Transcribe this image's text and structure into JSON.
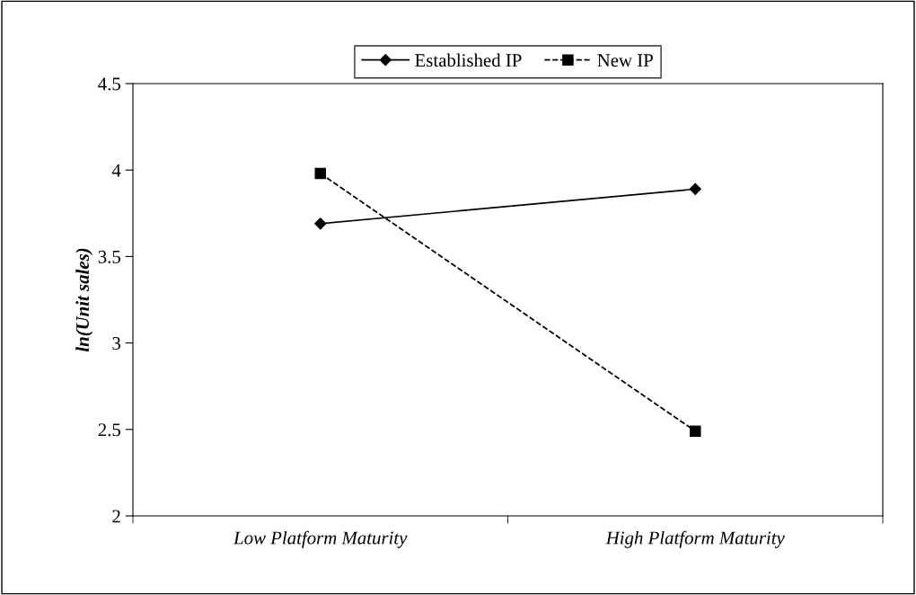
{
  "chart_data": {
    "type": "line",
    "ylabel": "ln(Unit sales)",
    "categories": [
      "Low Platform Maturity",
      "High Platform Maturity"
    ],
    "series": [
      {
        "name": "Established IP",
        "color": "#000000",
        "values": [
          3.69,
          3.89
        ],
        "marker": "diamond",
        "line_style": "solid"
      },
      {
        "name": "New IP",
        "color": "#000000",
        "values": [
          3.98,
          2.49
        ],
        "marker": "square",
        "line_style": "dashed"
      }
    ],
    "ylim": [
      2,
      4.5
    ],
    "yticks": [
      2,
      2.5,
      3,
      3.5,
      4,
      4.5
    ],
    "grid": false,
    "legend": "top"
  }
}
